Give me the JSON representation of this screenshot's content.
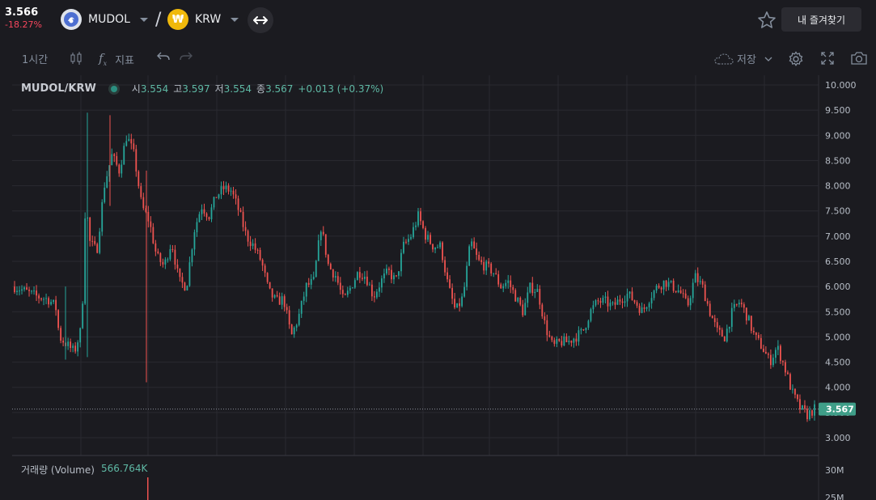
{
  "header": {
    "price": "3.566",
    "change_pct": "-18.27%",
    "base_coin": "MUDOL",
    "quote_coin": "KRW",
    "quote_icon_glyph": "₩",
    "favorite_label": "내 즐겨찾기",
    "icons": [
      "mudol-coin-icon",
      "krw-coin-icon",
      "swap-icon",
      "star-icon"
    ]
  },
  "toolbar": {
    "interval": "1시간",
    "indicator_label": "지표",
    "save_label": "저장",
    "icons": [
      "candle-type-icon",
      "fx-icon",
      "undo-icon",
      "redo-icon",
      "cloud-icon",
      "chevron-down-icon",
      "settings-icon",
      "fullscreen-icon",
      "camera-icon"
    ]
  },
  "legend": {
    "pair": "MUDOL/KRW",
    "open_label": "시",
    "open": "3.554",
    "high_label": "고",
    "high": "3.597",
    "low_label": "저",
    "low": "3.554",
    "close_label": "종",
    "close": "3.567",
    "change": "+0.013 (+0.37%)"
  },
  "volume_legend": {
    "label": "거래량 (Volume)",
    "value": "566.764K"
  },
  "colors": {
    "up": "#26a69a",
    "down": "#ef5350",
    "background": "#1b1b20",
    "grid": "#2a2a30",
    "last_price_tag": "#3f9e88"
  },
  "chart_data": {
    "type": "candlestick",
    "pair": "MUDOL/KRW",
    "interval": "1시간",
    "ylim": [
      2.7,
      10.1
    ],
    "y_ticks": [
      "10.000",
      "9.500",
      "9.000",
      "8.500",
      "8.000",
      "7.500",
      "7.000",
      "6.500",
      "6.000",
      "5.500",
      "5.000",
      "4.500",
      "4.000",
      "3.500",
      "3.000"
    ],
    "last_price": "3.567",
    "volume_ticks": [
      "30M",
      "25M"
    ],
    "approx_close_path": [
      [
        0,
        6.0
      ],
      [
        3,
        5.9
      ],
      [
        6,
        5.8
      ],
      [
        9,
        5.75
      ],
      [
        11,
        5.6
      ],
      [
        12,
        5.0
      ],
      [
        14,
        4.85
      ],
      [
        16,
        4.7
      ],
      [
        18,
        5.2
      ],
      [
        19,
        7.8
      ],
      [
        20,
        6.9
      ],
      [
        22,
        6.7
      ],
      [
        24,
        8.0
      ],
      [
        26,
        8.6
      ],
      [
        28,
        8.3
      ],
      [
        30,
        9.0
      ],
      [
        32,
        8.6
      ],
      [
        34,
        7.6
      ],
      [
        36,
        7.3
      ],
      [
        38,
        6.6
      ],
      [
        40,
        6.4
      ],
      [
        42,
        6.9
      ],
      [
        44,
        6.1
      ],
      [
        46,
        6.0
      ],
      [
        48,
        7.1
      ],
      [
        50,
        7.6
      ],
      [
        52,
        7.4
      ],
      [
        54,
        7.8
      ],
      [
        56,
        7.95
      ],
      [
        58,
        7.9
      ],
      [
        60,
        7.5
      ],
      [
        62,
        7.0
      ],
      [
        64,
        6.8
      ],
      [
        66,
        6.5
      ],
      [
        68,
        5.9
      ],
      [
        70,
        5.7
      ],
      [
        72,
        5.75
      ],
      [
        74,
        5.0
      ],
      [
        76,
        5.4
      ],
      [
        78,
        6.0
      ],
      [
        80,
        6.1
      ],
      [
        82,
        7.2
      ],
      [
        84,
        6.4
      ],
      [
        86,
        6.2
      ],
      [
        88,
        5.7
      ],
      [
        90,
        6.0
      ],
      [
        92,
        6.3
      ],
      [
        94,
        6.2
      ],
      [
        96,
        5.8
      ],
      [
        98,
        6.1
      ],
      [
        100,
        6.3
      ],
      [
        102,
        6.1
      ],
      [
        104,
        6.8
      ],
      [
        106,
        7.0
      ],
      [
        108,
        7.4
      ],
      [
        110,
        7.0
      ],
      [
        112,
        6.8
      ],
      [
        114,
        6.8
      ],
      [
        116,
        6.0
      ],
      [
        118,
        5.5
      ],
      [
        120,
        5.8
      ],
      [
        122,
        6.9
      ],
      [
        124,
        6.5
      ],
      [
        126,
        6.4
      ],
      [
        128,
        6.3
      ],
      [
        130,
        6.0
      ],
      [
        132,
        6.1
      ],
      [
        134,
        5.8
      ],
      [
        136,
        5.5
      ],
      [
        138,
        6.0
      ],
      [
        140,
        5.9
      ],
      [
        142,
        5.2
      ],
      [
        144,
        4.8
      ],
      [
        146,
        4.9
      ],
      [
        148,
        4.9
      ],
      [
        150,
        5.0
      ],
      [
        152,
        5.1
      ],
      [
        154,
        5.5
      ],
      [
        156,
        5.7
      ],
      [
        158,
        5.7
      ],
      [
        160,
        5.6
      ],
      [
        162,
        5.75
      ],
      [
        164,
        5.85
      ],
      [
        166,
        5.7
      ],
      [
        168,
        5.5
      ],
      [
        170,
        5.8
      ],
      [
        172,
        6.0
      ],
      [
        174,
        6.1
      ],
      [
        176,
        6.0
      ],
      [
        178,
        5.9
      ],
      [
        180,
        5.6
      ],
      [
        182,
        6.2
      ],
      [
        184,
        6.0
      ],
      [
        186,
        5.5
      ],
      [
        188,
        5.1
      ],
      [
        190,
        5.0
      ],
      [
        192,
        5.5
      ],
      [
        194,
        5.7
      ],
      [
        196,
        5.4
      ],
      [
        198,
        5.0
      ],
      [
        200,
        4.8
      ],
      [
        202,
        4.5
      ],
      [
        204,
        4.8
      ],
      [
        206,
        4.4
      ],
      [
        208,
        3.9
      ],
      [
        210,
        3.6
      ],
      [
        212,
        3.45
      ],
      [
        214,
        3.567
      ]
    ]
  }
}
